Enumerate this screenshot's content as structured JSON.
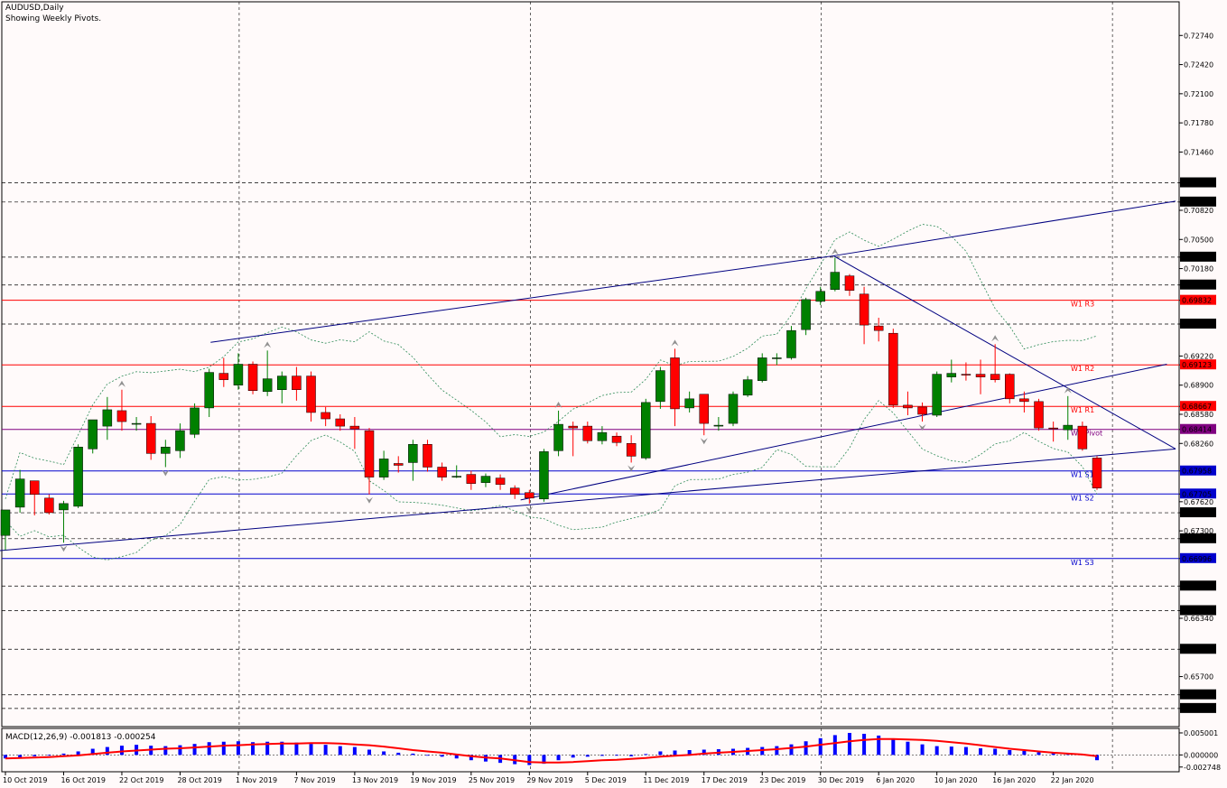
{
  "header": {
    "symbol": "AUDUSD,Daily",
    "subtitle": "Showing Weekly Pivots."
  },
  "macd": {
    "label": "MACD(12,26,9) -0.001813 -0.000254",
    "ticks": [
      "0.005001",
      "0.000000",
      "-0.002748"
    ]
  },
  "colors": {
    "bull": "#008000",
    "bear": "#ff0000",
    "support": "#0000cd",
    "resistance": "#ff0000",
    "pivot": "#800080",
    "grid": "#000000",
    "trend": "#000080",
    "envelope": "#2e8b57",
    "macd_hist": "#0000ff",
    "macd_signal": "#ff0000"
  },
  "chart_data": {
    "type": "candlestick",
    "title": "AUDUSD,Daily",
    "subtitle": "Showing Weekly Pivots.",
    "ylim": [
      0.652,
      0.7305
    ],
    "price_ticks": [
      "0.72740",
      "0.72420",
      "0.72100",
      "0.71780",
      "0.71460",
      "0.71122",
      "0.70911",
      "0.70820",
      "0.70500",
      "0.70306",
      "0.70180",
      "0.70000",
      "0.69832",
      "0.69571",
      "0.69220",
      "0.69123",
      "0.68900",
      "0.68667",
      "0.68580",
      "0.68414",
      "0.68260",
      "0.67958",
      "0.67705",
      "0.67620",
      "0.67499",
      "0.67300",
      "0.67214",
      "0.66996",
      "0.66694",
      "0.66424",
      "0.66340",
      "0.66000",
      "0.65700",
      "0.65500",
      "0.65350"
    ],
    "highlight_ticks": [
      "0.71122",
      "0.70911",
      "0.70306",
      "0.70000",
      "0.69832",
      "0.69571",
      "0.69123",
      "0.68667",
      "0.68414",
      "0.67958",
      "0.67705",
      "0.67499",
      "0.67214",
      "0.66996",
      "0.66694",
      "0.66424",
      "0.66000",
      "0.65500",
      "0.65350"
    ],
    "dashed_levels": [
      0.71122,
      0.70911,
      0.70306,
      0.7,
      0.69571,
      0.67499,
      0.67214,
      0.66694,
      0.66424,
      0.66,
      0.655,
      0.6535
    ],
    "pivots": [
      {
        "label": "W1 R3",
        "value": 0.69832,
        "kind": "resistance"
      },
      {
        "label": "W1 R2",
        "value": 0.69123,
        "kind": "resistance"
      },
      {
        "label": "W1 R1",
        "value": 0.68667,
        "kind": "resistance"
      },
      {
        "label": "W1 Pivot",
        "value": 0.68414,
        "kind": "pivot"
      },
      {
        "label": "W1 S1",
        "value": 0.67958,
        "kind": "support"
      },
      {
        "label": "W1 S2",
        "value": 0.67705,
        "kind": "support"
      },
      {
        "label": "W1 S3",
        "value": 0.66996,
        "kind": "support"
      }
    ],
    "x_labels": [
      {
        "label": "10 Oct 2019",
        "i": 0
      },
      {
        "label": "16 Oct 2019",
        "i": 4
      },
      {
        "label": "22 Oct 2019",
        "i": 8
      },
      {
        "label": "28 Oct 2019",
        "i": 12
      },
      {
        "label": "1 Nov 2019",
        "i": 16
      },
      {
        "label": "7 Nov 2019",
        "i": 20
      },
      {
        "label": "13 Nov 2019",
        "i": 24
      },
      {
        "label": "19 Nov 2019",
        "i": 28
      },
      {
        "label": "25 Nov 2019",
        "i": 32
      },
      {
        "label": "29 Nov 2019",
        "i": 36
      },
      {
        "label": "5 Dec 2019",
        "i": 40
      },
      {
        "label": "11 Dec 2019",
        "i": 44
      },
      {
        "label": "17 Dec 2019",
        "i": 48
      },
      {
        "label": "23 Dec 2019",
        "i": 52
      },
      {
        "label": "30 Dec 2019",
        "i": 56
      },
      {
        "label": "6 Jan 2020",
        "i": 60
      },
      {
        "label": "10 Jan 2020",
        "i": 64
      },
      {
        "label": "16 Jan 2020",
        "i": 68
      },
      {
        "label": "22 Jan 2020",
        "i": 72
      }
    ],
    "candles": [
      {
        "o": 0.6725,
        "h": 0.6752,
        "l": 0.6709,
        "c": 0.6753
      },
      {
        "o": 0.6756,
        "h": 0.6797,
        "l": 0.675,
        "c": 0.6787
      },
      {
        "o": 0.6785,
        "h": 0.6785,
        "l": 0.6747,
        "c": 0.677
      },
      {
        "o": 0.6766,
        "h": 0.677,
        "l": 0.6748,
        "c": 0.675
      },
      {
        "o": 0.6753,
        "h": 0.6763,
        "l": 0.6717,
        "c": 0.676
      },
      {
        "o": 0.6757,
        "h": 0.6825,
        "l": 0.6755,
        "c": 0.6822
      },
      {
        "o": 0.682,
        "h": 0.6852,
        "l": 0.6815,
        "c": 0.6852
      },
      {
        "o": 0.6845,
        "h": 0.6877,
        "l": 0.683,
        "c": 0.6863
      },
      {
        "o": 0.6862,
        "h": 0.6885,
        "l": 0.684,
        "c": 0.685
      },
      {
        "o": 0.6848,
        "h": 0.6855,
        "l": 0.684,
        "c": 0.6848
      },
      {
        "o": 0.6848,
        "h": 0.6856,
        "l": 0.6808,
        "c": 0.6815
      },
      {
        "o": 0.6815,
        "h": 0.683,
        "l": 0.68,
        "c": 0.6822
      },
      {
        "o": 0.6818,
        "h": 0.6848,
        "l": 0.681,
        "c": 0.684
      },
      {
        "o": 0.6836,
        "h": 0.687,
        "l": 0.6832,
        "c": 0.6865
      },
      {
        "o": 0.6865,
        "h": 0.6908,
        "l": 0.6855,
        "c": 0.6904
      },
      {
        "o": 0.6903,
        "h": 0.692,
        "l": 0.6888,
        "c": 0.6896
      },
      {
        "o": 0.689,
        "h": 0.6925,
        "l": 0.6885,
        "c": 0.6913
      },
      {
        "o": 0.6913,
        "h": 0.6916,
        "l": 0.688,
        "c": 0.6884
      },
      {
        "o": 0.6883,
        "h": 0.6928,
        "l": 0.6878,
        "c": 0.6897
      },
      {
        "o": 0.6885,
        "h": 0.6905,
        "l": 0.687,
        "c": 0.69
      },
      {
        "o": 0.69,
        "h": 0.691,
        "l": 0.6873,
        "c": 0.6885
      },
      {
        "o": 0.69,
        "h": 0.6905,
        "l": 0.685,
        "c": 0.686
      },
      {
        "o": 0.686,
        "h": 0.6866,
        "l": 0.6845,
        "c": 0.6853
      },
      {
        "o": 0.6853,
        "h": 0.6858,
        "l": 0.684,
        "c": 0.6845
      },
      {
        "o": 0.6845,
        "h": 0.6855,
        "l": 0.682,
        "c": 0.6842
      },
      {
        "o": 0.684,
        "h": 0.6843,
        "l": 0.677,
        "c": 0.6789
      },
      {
        "o": 0.6789,
        "h": 0.6818,
        "l": 0.6786,
        "c": 0.6809
      },
      {
        "o": 0.6804,
        "h": 0.6812,
        "l": 0.6794,
        "c": 0.6802
      },
      {
        "o": 0.6805,
        "h": 0.683,
        "l": 0.6785,
        "c": 0.6825
      },
      {
        "o": 0.6825,
        "h": 0.683,
        "l": 0.6795,
        "c": 0.68
      },
      {
        "o": 0.68,
        "h": 0.6805,
        "l": 0.6785,
        "c": 0.6789
      },
      {
        "o": 0.6789,
        "h": 0.6802,
        "l": 0.6788,
        "c": 0.679
      },
      {
        "o": 0.6792,
        "h": 0.6796,
        "l": 0.6775,
        "c": 0.6782
      },
      {
        "o": 0.6783,
        "h": 0.6793,
        "l": 0.6778,
        "c": 0.679
      },
      {
        "o": 0.6788,
        "h": 0.6792,
        "l": 0.6775,
        "c": 0.6781
      },
      {
        "o": 0.6777,
        "h": 0.678,
        "l": 0.6765,
        "c": 0.677
      },
      {
        "o": 0.6772,
        "h": 0.6775,
        "l": 0.676,
        "c": 0.6766
      },
      {
        "o": 0.6765,
        "h": 0.682,
        "l": 0.6762,
        "c": 0.6817
      },
      {
        "o": 0.6818,
        "h": 0.6862,
        "l": 0.6812,
        "c": 0.6847
      },
      {
        "o": 0.6845,
        "h": 0.685,
        "l": 0.6812,
        "c": 0.6843
      },
      {
        "o": 0.6845,
        "h": 0.685,
        "l": 0.6826,
        "c": 0.6829
      },
      {
        "o": 0.6829,
        "h": 0.6845,
        "l": 0.6825,
        "c": 0.6838
      },
      {
        "o": 0.6834,
        "h": 0.6838,
        "l": 0.6823,
        "c": 0.6827
      },
      {
        "o": 0.6826,
        "h": 0.6835,
        "l": 0.6805,
        "c": 0.6812
      },
      {
        "o": 0.681,
        "h": 0.6875,
        "l": 0.6808,
        "c": 0.6871
      },
      {
        "o": 0.6872,
        "h": 0.691,
        "l": 0.6864,
        "c": 0.6906
      },
      {
        "o": 0.692,
        "h": 0.693,
        "l": 0.6845,
        "c": 0.6864
      },
      {
        "o": 0.6865,
        "h": 0.6883,
        "l": 0.686,
        "c": 0.6875
      },
      {
        "o": 0.688,
        "h": 0.688,
        "l": 0.6835,
        "c": 0.6848
      },
      {
        "o": 0.6845,
        "h": 0.6855,
        "l": 0.684,
        "c": 0.6846
      },
      {
        "o": 0.6848,
        "h": 0.6883,
        "l": 0.6845,
        "c": 0.688
      },
      {
        "o": 0.6879,
        "h": 0.69,
        "l": 0.6877,
        "c": 0.6896
      },
      {
        "o": 0.6895,
        "h": 0.6925,
        "l": 0.6893,
        "c": 0.692
      },
      {
        "o": 0.692,
        "h": 0.6925,
        "l": 0.6912,
        "c": 0.692
      },
      {
        "o": 0.692,
        "h": 0.6955,
        "l": 0.6918,
        "c": 0.695
      },
      {
        "o": 0.6951,
        "h": 0.6986,
        "l": 0.6945,
        "c": 0.6984
      },
      {
        "o": 0.6982,
        "h": 0.6998,
        "l": 0.6978,
        "c": 0.6993
      },
      {
        "o": 0.6995,
        "h": 0.703,
        "l": 0.6993,
        "c": 0.7014
      },
      {
        "o": 0.701,
        "h": 0.7012,
        "l": 0.6988,
        "c": 0.6994
      },
      {
        "o": 0.699,
        "h": 0.6998,
        "l": 0.6935,
        "c": 0.6956
      },
      {
        "o": 0.6955,
        "h": 0.6964,
        "l": 0.6938,
        "c": 0.695
      },
      {
        "o": 0.6947,
        "h": 0.6952,
        "l": 0.6865,
        "c": 0.6868
      },
      {
        "o": 0.6868,
        "h": 0.6883,
        "l": 0.6857,
        "c": 0.6865
      },
      {
        "o": 0.6866,
        "h": 0.6871,
        "l": 0.685,
        "c": 0.6858
      },
      {
        "o": 0.6857,
        "h": 0.6905,
        "l": 0.6855,
        "c": 0.6902
      },
      {
        "o": 0.6899,
        "h": 0.6918,
        "l": 0.6893,
        "c": 0.6903
      },
      {
        "o": 0.6902,
        "h": 0.6915,
        "l": 0.6895,
        "c": 0.6901
      },
      {
        "o": 0.6902,
        "h": 0.6918,
        "l": 0.688,
        "c": 0.6899
      },
      {
        "o": 0.6902,
        "h": 0.6935,
        "l": 0.6893,
        "c": 0.6896
      },
      {
        "o": 0.6902,
        "h": 0.6903,
        "l": 0.687,
        "c": 0.6875
      },
      {
        "o": 0.6875,
        "h": 0.6883,
        "l": 0.686,
        "c": 0.6872
      },
      {
        "o": 0.6872,
        "h": 0.6875,
        "l": 0.684,
        "c": 0.6843
      },
      {
        "o": 0.6843,
        "h": 0.685,
        "l": 0.6828,
        "c": 0.6842
      },
      {
        "o": 0.6841,
        "h": 0.6878,
        "l": 0.683,
        "c": 0.6846
      },
      {
        "o": 0.6845,
        "h": 0.685,
        "l": 0.6818,
        "c": 0.682
      },
      {
        "o": 0.681,
        "h": 0.6812,
        "l": 0.6775,
        "c": 0.6777
      }
    ],
    "trendlines": [
      {
        "from": [
          -0.6,
          0.6708
        ],
        "to": [
          80.4,
          0.682
        ]
      },
      {
        "from": [
          14.1,
          0.6937
        ],
        "to": [
          56.9,
          0.7032
        ]
      },
      {
        "from": [
          56.9,
          0.7032
        ],
        "to": [
          80.4,
          0.682
        ]
      },
      {
        "from": [
          35.4,
          0.6764
        ],
        "to": [
          79.8,
          0.6913
        ]
      },
      {
        "from": [
          56.9,
          0.7032
        ],
        "to": [
          80.4,
          0.7092
        ]
      }
    ],
    "macd": {
      "ylim": [
        -0.003,
        0.0052
      ],
      "histogram": [
        -0.0008,
        -0.0006,
        -0.0003,
        -0.0001,
        0.0003,
        0.0008,
        0.0014,
        0.0018,
        0.0021,
        0.0023,
        0.0021,
        0.002,
        0.0022,
        0.0025,
        0.0029,
        0.003,
        0.0031,
        0.0029,
        0.003,
        0.003,
        0.0028,
        0.0025,
        0.0023,
        0.002,
        0.0018,
        0.0012,
        0.0008,
        0.0005,
        0.0003,
        0.0,
        -0.0004,
        -0.0008,
        -0.0012,
        -0.0015,
        -0.0018,
        -0.0021,
        -0.0023,
        -0.002,
        -0.0012,
        -0.0006,
        -0.0004,
        -0.0002,
        -0.0001,
        -0.0003,
        0.0002,
        0.0008,
        0.001,
        0.0011,
        0.0012,
        0.0013,
        0.0014,
        0.0016,
        0.0018,
        0.002,
        0.0024,
        0.0031,
        0.0038,
        0.0045,
        0.005,
        0.0048,
        0.0044,
        0.0036,
        0.003,
        0.0024,
        0.002,
        0.0019,
        0.0018,
        0.0015,
        0.0014,
        0.0011,
        0.0009,
        0.0006,
        0.0004,
        0.0003,
        0.0001,
        -0.0012
      ],
      "signal": [
        -0.0008,
        -0.0007,
        -0.0006,
        -0.0005,
        -0.0003,
        -0.0001,
        0.0002,
        0.0005,
        0.0008,
        0.001,
        0.0012,
        0.0014,
        0.0015,
        0.0017,
        0.0019,
        0.0021,
        0.0022,
        0.0024,
        0.0025,
        0.0026,
        0.0026,
        0.0027,
        0.0027,
        0.0026,
        0.0024,
        0.0022,
        0.0019,
        0.0015,
        0.0011,
        0.0008,
        0.0005,
        0.0001,
        -0.0003,
        -0.0006,
        -0.0008,
        -0.0012,
        -0.0016,
        -0.0017,
        -0.0017,
        -0.0016,
        -0.0014,
        -0.0012,
        -0.0011,
        -0.0009,
        -0.0007,
        -0.0004,
        -0.0002,
        0.0,
        0.0003,
        0.0005,
        0.0007,
        0.0009,
        0.0011,
        0.0013,
        0.0016,
        0.0019,
        0.0023,
        0.0027,
        0.0031,
        0.0034,
        0.0036,
        0.0036,
        0.0035,
        0.0034,
        0.0032,
        0.0029,
        0.0026,
        0.0022,
        0.0018,
        0.0014,
        0.0011,
        0.0008,
        0.0005,
        0.0003,
        0.0001,
        -0.0003
      ]
    }
  }
}
